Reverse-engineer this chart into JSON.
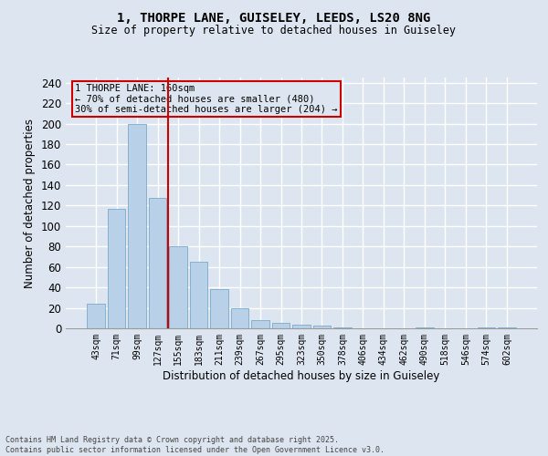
{
  "title_line1": "1, THORPE LANE, GUISELEY, LEEDS, LS20 8NG",
  "title_line2": "Size of property relative to detached houses in Guiseley",
  "xlabel": "Distribution of detached houses by size in Guiseley",
  "ylabel": "Number of detached properties",
  "categories": [
    "43sqm",
    "71sqm",
    "99sqm",
    "127sqm",
    "155sqm",
    "183sqm",
    "211sqm",
    "239sqm",
    "267sqm",
    "295sqm",
    "323sqm",
    "350sqm",
    "378sqm",
    "406sqm",
    "434sqm",
    "462sqm",
    "490sqm",
    "518sqm",
    "546sqm",
    "574sqm",
    "602sqm"
  ],
  "values": [
    24,
    117,
    200,
    127,
    80,
    65,
    38,
    20,
    8,
    5,
    4,
    3,
    1,
    0,
    0,
    0,
    1,
    0,
    0,
    1,
    1
  ],
  "bar_color": "#b8d0e8",
  "bar_edge_color": "#7aaac8",
  "background_color": "#dde6f0",
  "grid_color": "#ffffff",
  "property_line_x": 3.5,
  "property_label": "1 THORPE LANE: 160sqm",
  "annotation_line1": "← 70% of detached houses are smaller (480)",
  "annotation_line2": "30% of semi-detached houses are larger (204) →",
  "annotation_box_color": "#cc0000",
  "ylim": [
    0,
    245
  ],
  "yticks": [
    0,
    20,
    40,
    60,
    80,
    100,
    120,
    140,
    160,
    180,
    200,
    220,
    240
  ],
  "footer_line1": "Contains HM Land Registry data © Crown copyright and database right 2025.",
  "footer_line2": "Contains public sector information licensed under the Open Government Licence v3.0."
}
